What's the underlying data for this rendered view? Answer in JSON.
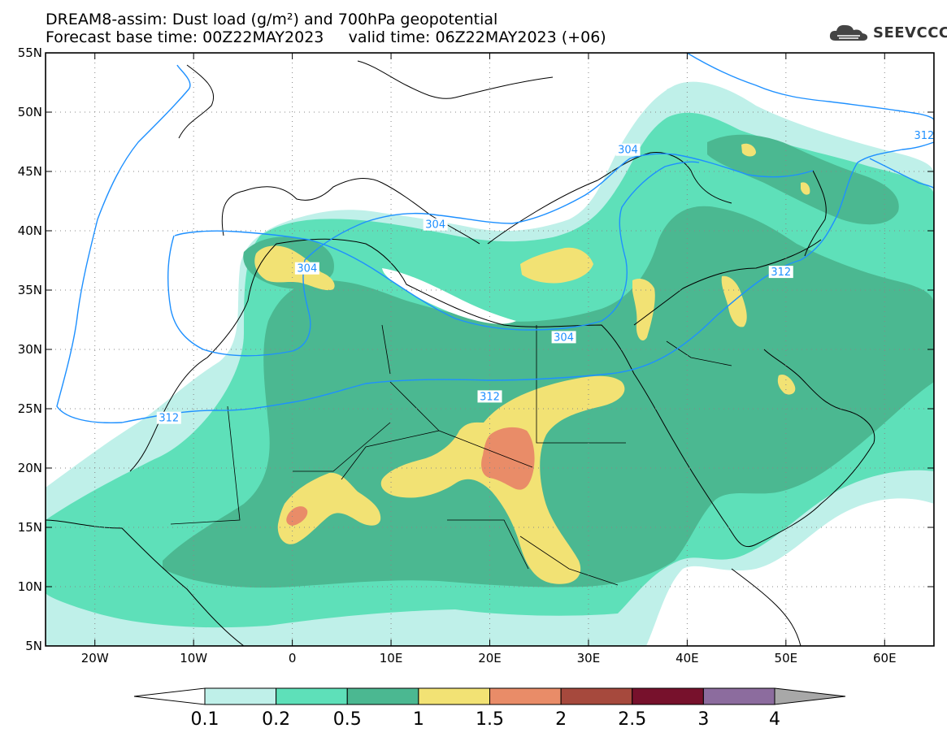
{
  "title": {
    "line1": "DREAM8-assim: Dust load (g/m²) and 700hPa geopotential",
    "line2": "Forecast base time: 00Z22MAY2023     valid time: 06Z22MAY2023 (+06)"
  },
  "logo": {
    "text": "SEEVCCC",
    "icon": "cloud-icon"
  },
  "map": {
    "lon_range": [
      -25,
      65
    ],
    "lat_range": [
      5,
      55
    ],
    "lon_ticks": [
      {
        "value": -20,
        "label": "20W"
      },
      {
        "value": -10,
        "label": "10W"
      },
      {
        "value": 0,
        "label": "0"
      },
      {
        "value": 10,
        "label": "10E"
      },
      {
        "value": 20,
        "label": "20E"
      },
      {
        "value": 30,
        "label": "30E"
      },
      {
        "value": 40,
        "label": "40E"
      },
      {
        "value": 50,
        "label": "50E"
      },
      {
        "value": 60,
        "label": "60E"
      }
    ],
    "lat_ticks": [
      {
        "value": 5,
        "label": "5N"
      },
      {
        "value": 10,
        "label": "10N"
      },
      {
        "value": 15,
        "label": "15N"
      },
      {
        "value": 20,
        "label": "20N"
      },
      {
        "value": 25,
        "label": "25N"
      },
      {
        "value": 30,
        "label": "30N"
      },
      {
        "value": 35,
        "label": "35N"
      },
      {
        "value": 40,
        "label": "40N"
      },
      {
        "value": 45,
        "label": "45N"
      },
      {
        "value": 50,
        "label": "50N"
      },
      {
        "value": 55,
        "label": "55N"
      }
    ],
    "grid": true,
    "contour_color": "#1e90ff",
    "contour_labels": [
      {
        "text": "304",
        "lon": -35.5,
        "lat": 41.5
      },
      {
        "text": "304",
        "lon": 1.5,
        "lat": 36.8
      },
      {
        "text": "304",
        "lon": 14.5,
        "lat": 40.5
      },
      {
        "text": "304",
        "lon": 27.5,
        "lat": 31.0
      },
      {
        "text": "304",
        "lon": 34.0,
        "lat": 46.8
      },
      {
        "text": "312",
        "lon": 20.0,
        "lat": 26.0
      },
      {
        "text": "312",
        "lon": -12.5,
        "lat": 24.2
      },
      {
        "text": "312",
        "lon": 49.5,
        "lat": 36.5
      },
      {
        "text": "312",
        "lon": 64.0,
        "lat": 48.0
      }
    ]
  },
  "colorbar": {
    "colors": [
      "#ffffff",
      "#bff0e9",
      "#5ee0b9",
      "#4bb891",
      "#f2e274",
      "#e98c68",
      "#a6493d",
      "#77112c",
      "#8c6c9e",
      "#a8a8a8"
    ],
    "labels": [
      "0.1",
      "0.2",
      "0.5",
      "1",
      "1.5",
      "2",
      "2.5",
      "3",
      "4"
    ]
  },
  "dust_levels": {
    "light": "#bff0e9",
    "medium": "#5ee0b9",
    "dark": "#4bb891",
    "yellow": "#f2e274",
    "orange": "#e98c68"
  }
}
